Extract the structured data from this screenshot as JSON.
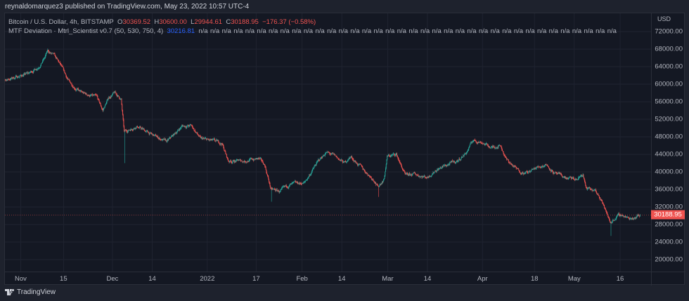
{
  "header": {
    "published": "reynaldomarquez3 published on TradingView.com, May 23, 2022 10:57 UTC-4"
  },
  "legend": {
    "symbol": "Bitcoin / U.S. Dollar, 4h, BITSTAMP",
    "o_label": "O",
    "o": "30369.52",
    "h_label": "H",
    "h": "30600.00",
    "l_label": "L",
    "l": "29944.61",
    "c_label": "C",
    "c": "30188.95",
    "change": "−176.37 (−0.58%)",
    "indicator": "MTF Deviation · Mtrl_Scientist v0.7 (50, 530, 750, 4)",
    "indicator_value": "30216.81",
    "na_text": "n/a",
    "na_count": 36
  },
  "price_axis": {
    "currency": "USD",
    "labels": [
      "72000.00",
      "68000.00",
      "64000.00",
      "60000.00",
      "56000.00",
      "52000.00",
      "48000.00",
      "44000.00",
      "40000.00",
      "36000.00",
      "32000.00",
      "28000.00",
      "24000.00",
      "20000.00"
    ],
    "current": "30188.95"
  },
  "time_axis": {
    "labels": [
      {
        "t": "Nov",
        "d": 7
      },
      {
        "t": "15",
        "d": 21
      },
      {
        "t": "Dec",
        "d": 37
      },
      {
        "t": "14",
        "d": 50
      },
      {
        "t": "2022",
        "d": 68
      },
      {
        "t": "17",
        "d": 84
      },
      {
        "t": "Feb",
        "d": 99
      },
      {
        "t": "14",
        "d": 112
      },
      {
        "t": "Mar",
        "d": 127
      },
      {
        "t": "14",
        "d": 140
      },
      {
        "t": "Apr",
        "d": 158
      },
      {
        "t": "18",
        "d": 175
      },
      {
        "t": "May",
        "d": 188
      },
      {
        "t": "16",
        "d": 203
      }
    ]
  },
  "footer": {
    "brand": "TradingView"
  },
  "colors": {
    "up": "#26a69a",
    "down": "#ef5350",
    "grid": "#1f2330"
  },
  "chart_data": {
    "type": "candlestick",
    "title": "Bitcoin / U.S. Dollar, 4h, BITSTAMP",
    "ylim": [
      16000,
      76000
    ],
    "x_unit": "days since Oct 25, 2021",
    "keypoints": [
      [
        0,
        60500
      ],
      [
        5,
        61500
      ],
      [
        10,
        62500
      ],
      [
        13,
        64000
      ],
      [
        15,
        66000
      ],
      [
        16,
        67500
      ],
      [
        18,
        66500
      ],
      [
        20,
        64500
      ],
      [
        23,
        60500
      ],
      [
        27,
        58000
      ],
      [
        32,
        57000
      ],
      [
        34,
        54000
      ],
      [
        36,
        57000
      ],
      [
        38,
        58000
      ],
      [
        40,
        56500
      ],
      [
        41,
        49000
      ],
      [
        45,
        50500
      ],
      [
        50,
        48500
      ],
      [
        55,
        46800
      ],
      [
        60,
        50500
      ],
      [
        63,
        50500
      ],
      [
        66,
        47500
      ],
      [
        70,
        47000
      ],
      [
        73,
        46500
      ],
      [
        75,
        42500
      ],
      [
        80,
        42500
      ],
      [
        85,
        43000
      ],
      [
        87,
        41500
      ],
      [
        89,
        36000
      ],
      [
        92,
        35500
      ],
      [
        95,
        37000
      ],
      [
        100,
        37500
      ],
      [
        104,
        42000
      ],
      [
        107,
        44500
      ],
      [
        110,
        43500
      ],
      [
        113,
        42000
      ],
      [
        115,
        43500
      ],
      [
        120,
        40000
      ],
      [
        123,
        38000
      ],
      [
        124,
        36500
      ],
      [
        126,
        38500
      ],
      [
        127,
        43500
      ],
      [
        130,
        44000
      ],
      [
        133,
        39000
      ],
      [
        136,
        39500
      ],
      [
        140,
        38800
      ],
      [
        143,
        40500
      ],
      [
        148,
        42000
      ],
      [
        150,
        42500
      ],
      [
        153,
        44500
      ],
      [
        155,
        47200
      ],
      [
        158,
        46800
      ],
      [
        161,
        45500
      ],
      [
        164,
        46200
      ],
      [
        166,
        42800
      ],
      [
        170,
        40200
      ],
      [
        173,
        39800
      ],
      [
        176,
        41000
      ],
      [
        179,
        41800
      ],
      [
        182,
        39500
      ],
      [
        186,
        38500
      ],
      [
        189,
        38200
      ],
      [
        191,
        39500
      ],
      [
        192,
        36200
      ],
      [
        195,
        35500
      ],
      [
        197,
        34000
      ],
      [
        199,
        30000
      ],
      [
        200,
        28500
      ],
      [
        202,
        29800
      ],
      [
        204,
        30200
      ],
      [
        206,
        29300
      ],
      [
        208,
        29800
      ],
      [
        209.5,
        30188.95
      ]
    ],
    "spike_lows": [
      [
        41,
        42000
      ],
      [
        124,
        34300
      ],
      [
        200,
        25400
      ],
      [
        89,
        33200
      ]
    ]
  }
}
